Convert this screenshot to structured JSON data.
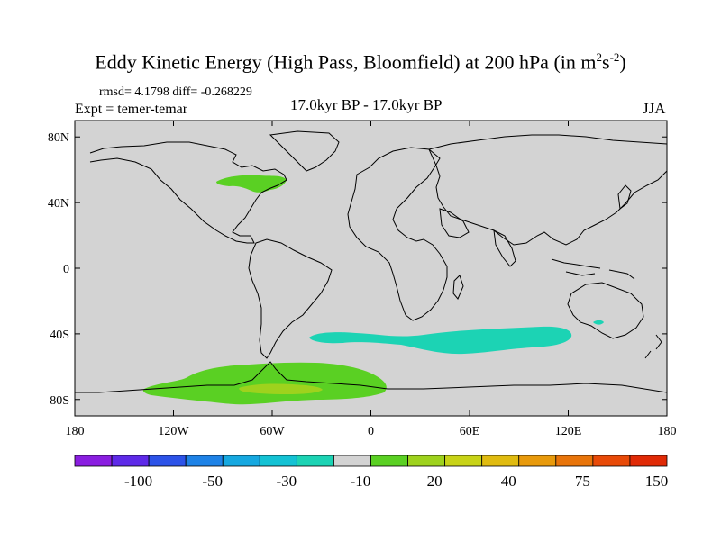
{
  "title": {
    "main": "Eddy Kinetic Energy (High Pass, Bloomfield) at 200 hPa (in m",
    "sup1": "2",
    "mid": "s",
    "sup2": "-2",
    "close": ")"
  },
  "stats_line": "rmsd= 4.1798 diff= -0.268229",
  "expt_line": "Expt = temer-temar",
  "period_line": "17.0kyr BP - 17.0kyr BP",
  "season": "JJA",
  "map": {
    "background_color": "#d3d3d3",
    "lat_ticks": [
      {
        "label": "80N",
        "value": 80
      },
      {
        "label": "40N",
        "value": 40
      },
      {
        "label": "0",
        "value": 0
      },
      {
        "label": "40S",
        "value": -40
      },
      {
        "label": "80S",
        "value": -80
      }
    ],
    "lon_ticks": [
      {
        "label": "180",
        "value": -180
      },
      {
        "label": "120W",
        "value": -120
      },
      {
        "label": "60W",
        "value": -60
      },
      {
        "label": "0",
        "value": 0
      },
      {
        "label": "60E",
        "value": 60
      },
      {
        "label": "120E",
        "value": 120
      },
      {
        "label": "180",
        "value": 180
      }
    ],
    "anomaly_regions": [
      {
        "name": "north-america-positive",
        "color": "#5ad023",
        "level": "10 to 20"
      },
      {
        "name": "southern-ocean-negative",
        "color": "#1cd3b4",
        "level": "-10 to -20"
      },
      {
        "name": "antarctic-positive",
        "color": "#5ad023",
        "level": "10 to 20"
      },
      {
        "name": "antarctic-positive-core",
        "color": "#9ed21d",
        "level": "20 to 30"
      }
    ]
  },
  "colorbar": {
    "colors": [
      "#8a1ee0",
      "#5e2ae8",
      "#2c53e8",
      "#1e82e6",
      "#16a8e0",
      "#14c2d4",
      "#1cd3b4",
      "#d3d3d3",
      "#5ad023",
      "#9ed21d",
      "#c8d317",
      "#e0bb10",
      "#e89a0c",
      "#e8740a",
      "#e84a08",
      "#e02a06"
    ],
    "labels": [
      {
        "text": "-100",
        "boundary": 2
      },
      {
        "text": "-50",
        "boundary": 4
      },
      {
        "text": "-30",
        "boundary": 6
      },
      {
        "text": "-10",
        "boundary": 8
      },
      {
        "text": "20",
        "boundary": 10
      },
      {
        "text": "40",
        "boundary": 12
      },
      {
        "text": "75",
        "boundary": 14
      },
      {
        "text": "150",
        "boundary": 16
      }
    ]
  }
}
